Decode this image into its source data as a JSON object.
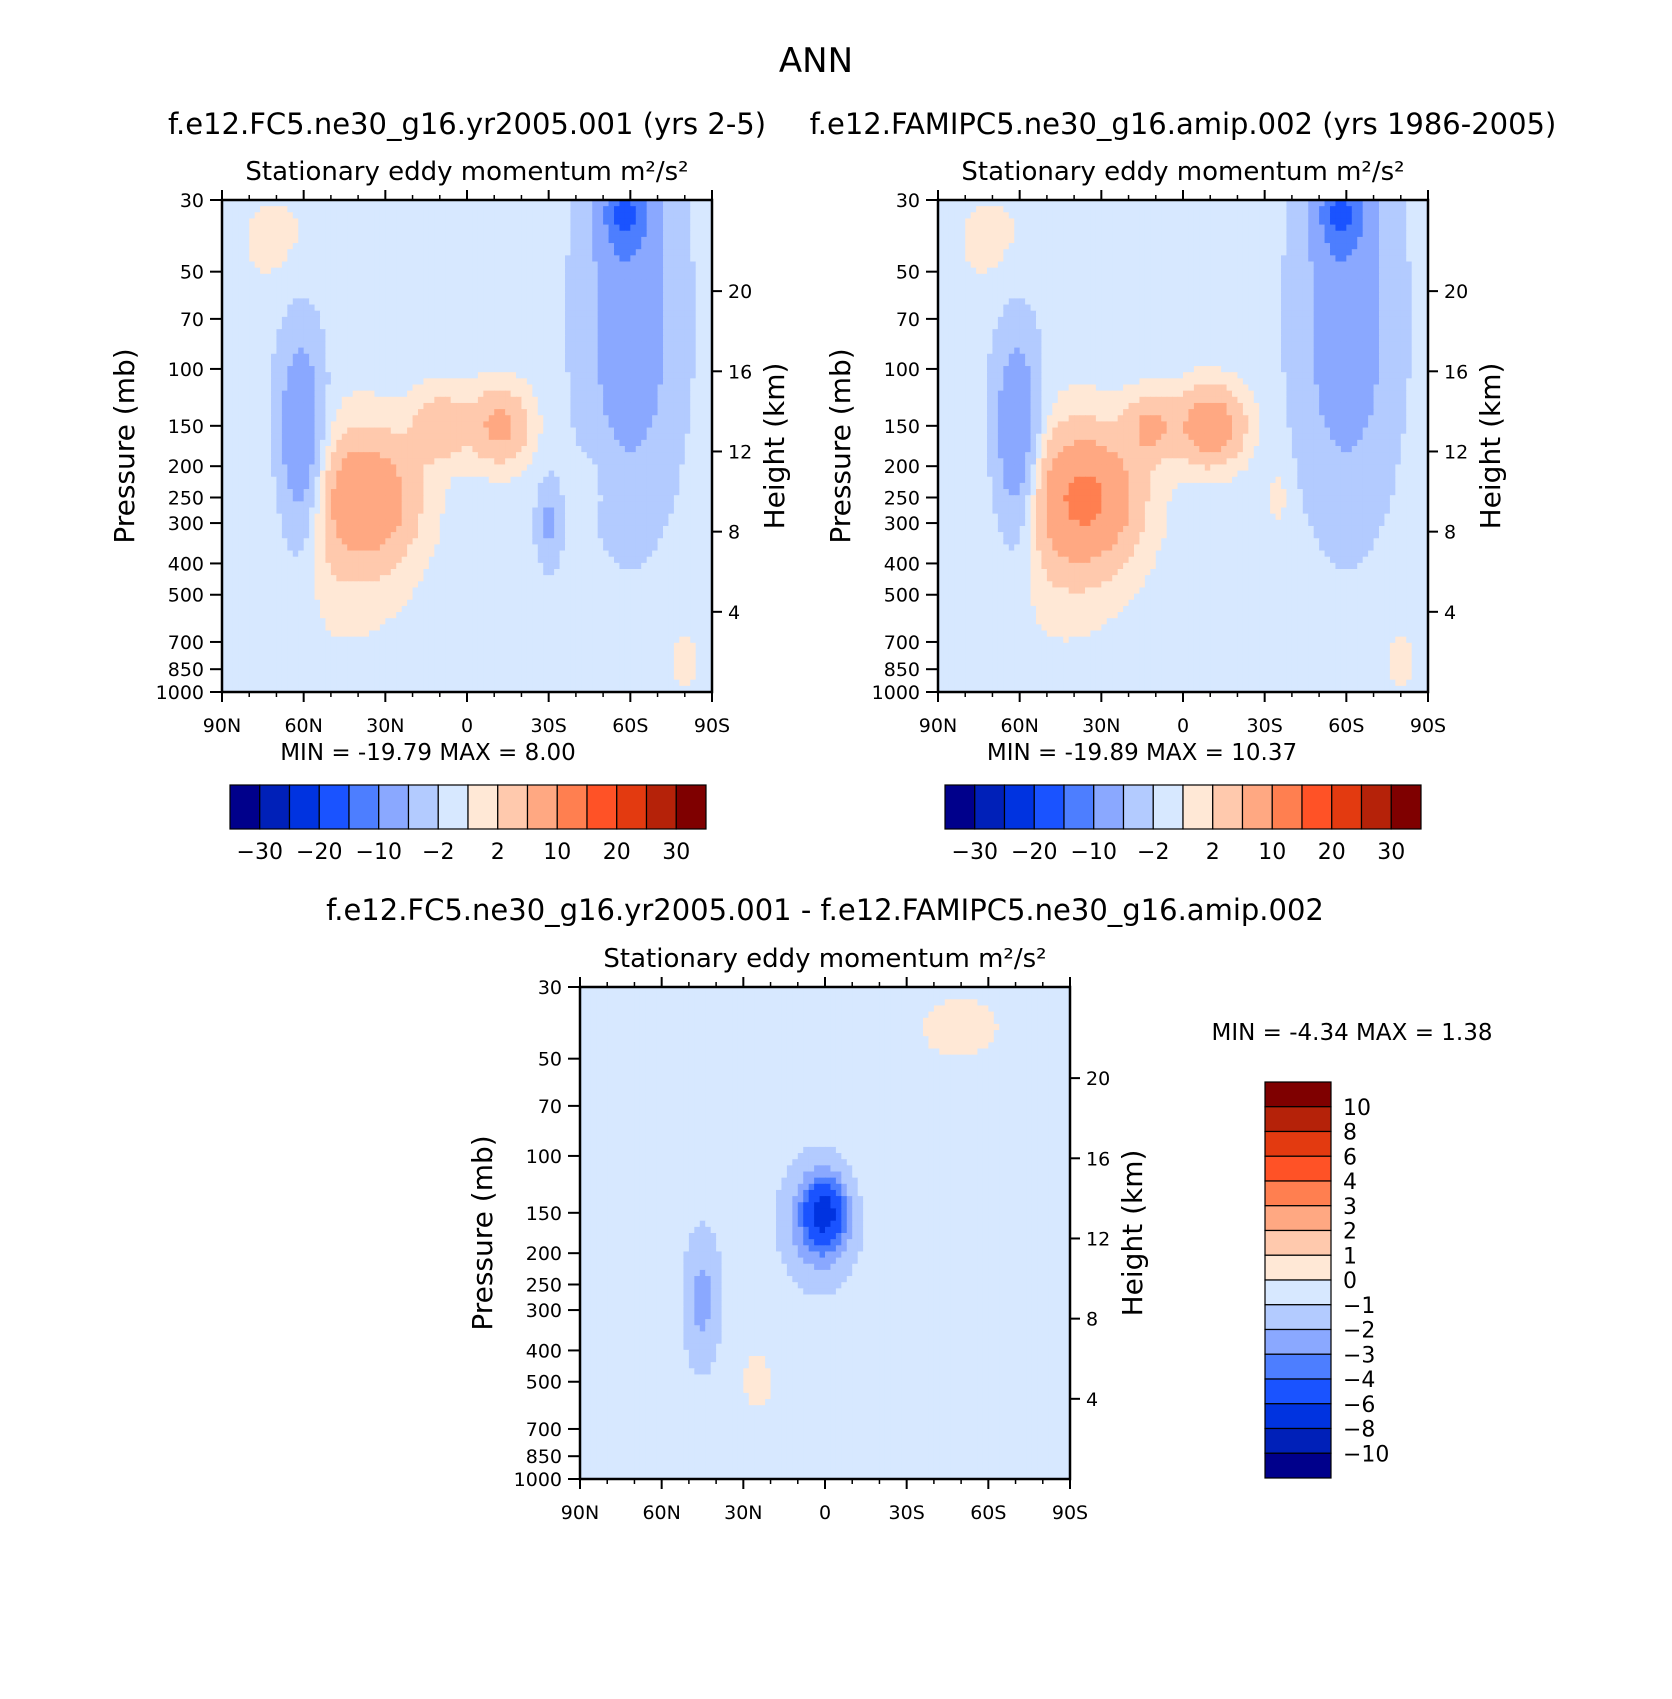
{
  "figure": {
    "title": "ANN"
  },
  "colors": {
    "main_levels": [
      -35,
      -30,
      -25,
      -20,
      -15,
      -10,
      -5,
      -2,
      0,
      2,
      5,
      10,
      15,
      20,
      25,
      30,
      35
    ],
    "main_palette": [
      "#00008b",
      "#0020b8",
      "#0033e0",
      "#1a53ff",
      "#4d7eff",
      "#8aa8ff",
      "#b3cbff",
      "#d7e8ff",
      "#ffe8d6",
      "#ffc9ad",
      "#ffa882",
      "#ff7f50",
      "#ff5226",
      "#e33a10",
      "#b52209",
      "#7f0000"
    ],
    "diff_levels": [
      -12,
      -10,
      -8,
      -6,
      -4,
      -3,
      -2,
      -1,
      0,
      1,
      2,
      3,
      4,
      6,
      8,
      10,
      12
    ],
    "diff_palette": [
      "#00008b",
      "#0020b8",
      "#0033e0",
      "#1a53ff",
      "#4d7eff",
      "#8aa8ff",
      "#b3cbff",
      "#d7e8ff",
      "#ffe8d6",
      "#ffc9ad",
      "#ffa882",
      "#ff7f50",
      "#ff5226",
      "#e33a10",
      "#b52209",
      "#7f0000"
    ]
  },
  "chart_data": [
    {
      "id": "panel1",
      "type": "heatmap",
      "case_title": "f.e12.FC5.ne30_g16.yr2005.001 (yrs 2-5)",
      "title": "Stationary eddy momentum",
      "units": "m²/s²",
      "ylabel": "Pressure (mb)",
      "y2label": "Height (km)",
      "x_ticks": [
        "90N",
        "60N",
        "30N",
        "0",
        "30S",
        "60S",
        "90S"
      ],
      "x_range": [
        90,
        -90
      ],
      "y_ticks": [
        30,
        50,
        70,
        100,
        150,
        200,
        250,
        300,
        400,
        500,
        700,
        850,
        1000
      ],
      "y_range": [
        30,
        1000
      ],
      "y_scale": "log",
      "y2_ticks": [
        20,
        16,
        12,
        8,
        4
      ],
      "min_label": "MIN = -19.79",
      "max_label": "MAX = 8.00",
      "min": -19.79,
      "max": 8.0,
      "colorbar_ticks": [
        "-30",
        "-20",
        "-10",
        "-2",
        "2",
        "10",
        "20",
        "30"
      ],
      "features": [
        {
          "lat": 61,
          "p": 170,
          "value": -9,
          "dlat": 6,
          "dlogp": 0.55
        },
        {
          "lat": 36,
          "p": 250,
          "value": 8,
          "dlat": 12,
          "dlogp": 0.3
        },
        {
          "lat": 45,
          "p": 300,
          "value": 3,
          "dlat": 18,
          "dlogp": 0.55
        },
        {
          "lat": 10,
          "p": 150,
          "value": 5,
          "dlat": 7,
          "dlogp": 0.18
        },
        {
          "lat": -12,
          "p": 150,
          "value": 7,
          "dlat": 8,
          "dlogp": 0.2
        },
        {
          "lat": 70,
          "p": 40,
          "value": 1.5,
          "dlat": 12,
          "dlogp": 0.3
        },
        {
          "lat": -60,
          "p": 70,
          "value": -7,
          "dlat": 12,
          "dlogp": 0.9
        },
        {
          "lat": -58,
          "p": 33,
          "value": -11,
          "dlat": 6,
          "dlogp": 0.2
        },
        {
          "lat": -30,
          "p": 300,
          "value": -5,
          "dlat": 3,
          "dlogp": 0.2
        },
        {
          "lat": -45,
          "p": 230,
          "value": 2,
          "dlat": 3,
          "dlogp": 0.15
        },
        {
          "lat": -80,
          "p": 800,
          "value": 3,
          "dlat": 3,
          "dlogp": 0.12
        }
      ],
      "base_value": -1
    },
    {
      "id": "panel2",
      "type": "heatmap",
      "case_title": "f.e12.FAMIPC5.ne30_g16.amip.002 (yrs 1986-2005)",
      "title": "Stationary eddy momentum",
      "units": "m²/s²",
      "ylabel": "Pressure (mb)",
      "y2label": "Height (km)",
      "x_ticks": [
        "90N",
        "60N",
        "30N",
        "0",
        "30S",
        "60S",
        "90S"
      ],
      "x_range": [
        90,
        -90
      ],
      "y_ticks": [
        30,
        50,
        70,
        100,
        150,
        200,
        250,
        300,
        400,
        500,
        700,
        850,
        1000
      ],
      "y_range": [
        30,
        1000
      ],
      "y_scale": "log",
      "y2_ticks": [
        20,
        16,
        12,
        8,
        4
      ],
      "min_label": "MIN = -19.89",
      "max_label": "MAX = 10.37",
      "min": -19.89,
      "max": 10.37,
      "colorbar_ticks": [
        "-30",
        "-20",
        "-10",
        "-2",
        "2",
        "10",
        "20",
        "30"
      ],
      "features": [
        {
          "lat": 61,
          "p": 170,
          "value": -9,
          "dlat": 6,
          "dlogp": 0.55
        },
        {
          "lat": 35,
          "p": 250,
          "value": 10,
          "dlat": 13,
          "dlogp": 0.32
        },
        {
          "lat": 45,
          "p": 300,
          "value": 3,
          "dlat": 18,
          "dlogp": 0.55
        },
        {
          "lat": 12,
          "p": 150,
          "value": 6,
          "dlat": 6,
          "dlogp": 0.16
        },
        {
          "lat": -10,
          "p": 150,
          "value": 9,
          "dlat": 9,
          "dlogp": 0.2
        },
        {
          "lat": 70,
          "p": 40,
          "value": 1.5,
          "dlat": 12,
          "dlogp": 0.3
        },
        {
          "lat": -60,
          "p": 70,
          "value": -7,
          "dlat": 12,
          "dlogp": 0.9
        },
        {
          "lat": -58,
          "p": 33,
          "value": -11,
          "dlat": 6,
          "dlogp": 0.2
        },
        {
          "lat": -35,
          "p": 250,
          "value": 2,
          "dlat": 3,
          "dlogp": 0.15
        },
        {
          "lat": -80,
          "p": 800,
          "value": 3,
          "dlat": 3,
          "dlogp": 0.12
        }
      ],
      "base_value": -1
    },
    {
      "id": "panel3",
      "type": "heatmap",
      "case_title": "f.e12.FC5.ne30_g16.yr2005.001 - f.e12.FAMIPC5.ne30_g16.amip.002",
      "title": "Stationary eddy momentum",
      "units": "m²/s²",
      "ylabel": "Pressure (mb)",
      "y2label": "Height (km)",
      "x_ticks": [
        "90N",
        "60N",
        "30N",
        "0",
        "30S",
        "60S",
        "90S"
      ],
      "x_range": [
        90,
        -90
      ],
      "y_ticks": [
        30,
        50,
        70,
        100,
        150,
        200,
        250,
        300,
        400,
        500,
        700,
        850,
        1000
      ],
      "y_range": [
        30,
        1000
      ],
      "y_scale": "log",
      "y2_ticks": [
        20,
        16,
        12,
        8,
        4
      ],
      "min_label": "MIN = -4.34",
      "max_label": "MAX = 1.38",
      "min": -4.34,
      "max": 1.38,
      "colorbar_ticks": [
        "10",
        "8",
        "6",
        "4",
        "3",
        "2",
        "1",
        "0",
        "-1",
        "-2",
        "-3",
        "-4",
        "-6",
        "-8",
        "-10"
      ],
      "features": [
        {
          "lat": 0,
          "p": 150,
          "value": -4.3,
          "dlat": 5,
          "dlogp": 0.16
        },
        {
          "lat": 2,
          "p": 160,
          "value": -2.5,
          "dlat": 9,
          "dlogp": 0.3
        },
        {
          "lat": 45,
          "p": 280,
          "value": -1.8,
          "dlat": 5,
          "dlogp": 0.35
        },
        {
          "lat": 70,
          "p": 200,
          "value": 0.5,
          "dlat": 4,
          "dlogp": 0.4
        },
        {
          "lat": -30,
          "p": 100,
          "value": 0.5,
          "dlat": 12,
          "dlogp": 0.4
        },
        {
          "lat": -50,
          "p": 40,
          "value": 1.2,
          "dlat": 10,
          "dlogp": 0.15
        },
        {
          "lat": 25,
          "p": 500,
          "value": 0.6,
          "dlat": 8,
          "dlogp": 0.3
        }
      ],
      "base_value": -0.5
    }
  ]
}
